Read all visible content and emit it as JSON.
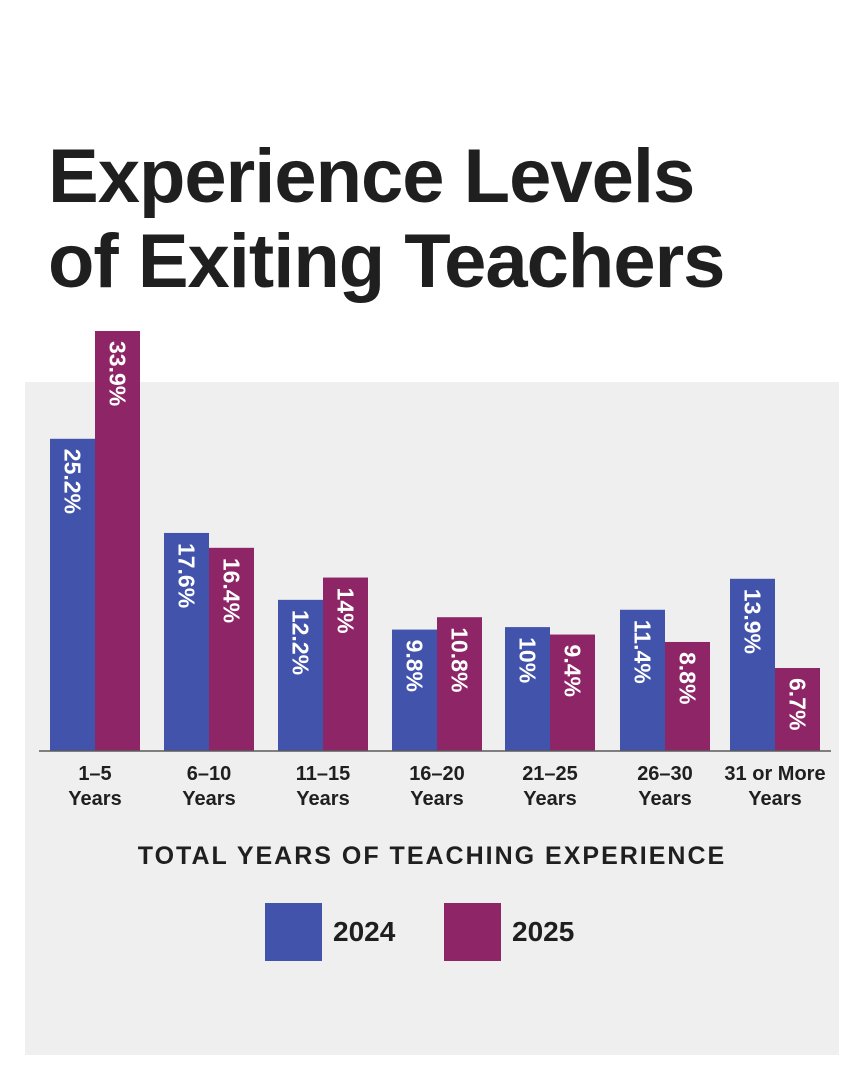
{
  "title_lines": [
    "Experience Levels",
    "of Exiting Teachers"
  ],
  "chart_data": {
    "type": "bar",
    "title": "Experience Levels of Exiting Teachers",
    "xlabel": "TOTAL YEARS OF TEACHING EXPERIENCE",
    "ylabel": "",
    "categories": [
      [
        "1–5",
        "Years"
      ],
      [
        "6–10",
        "Years"
      ],
      [
        "11–15",
        "Years"
      ],
      [
        "16–20",
        "Years"
      ],
      [
        "21–25",
        "Years"
      ],
      [
        "26–30",
        "Years"
      ],
      [
        "31 or More",
        "Years"
      ]
    ],
    "series": [
      {
        "name": "2024",
        "color": "#4153ab",
        "values": [
          25.2,
          17.6,
          12.2,
          9.8,
          10,
          11.4,
          13.9
        ],
        "labels": [
          "25.2%",
          "17.6%",
          "12.2%",
          "9.8%",
          "10%",
          "11.4%",
          "13.9%"
        ]
      },
      {
        "name": "2025",
        "color": "#8e2567",
        "values": [
          33.9,
          16.4,
          14,
          10.8,
          9.4,
          8.8,
          6.7
        ],
        "labels": [
          "33.9%",
          "16.4%",
          "14%",
          "10.8%",
          "9.4%",
          "8.8%",
          "6.7%"
        ]
      }
    ],
    "ylim": [
      0,
      33.9
    ],
    "grid": false,
    "legend_position": "bottom"
  }
}
